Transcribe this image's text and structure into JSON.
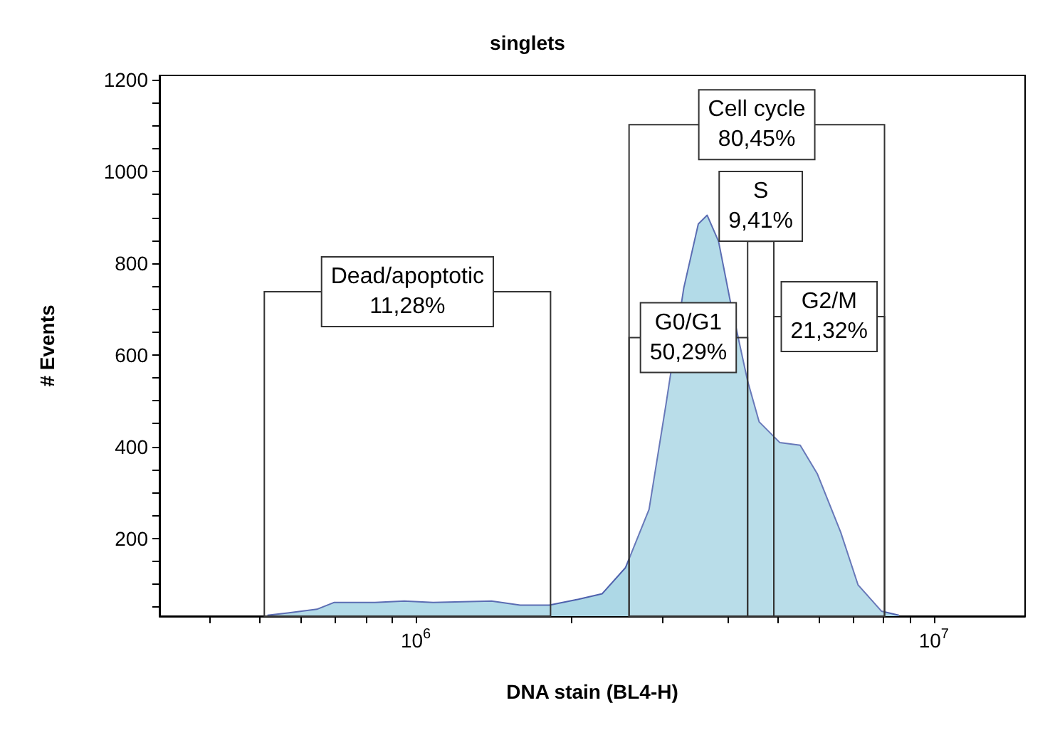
{
  "chart_data": {
    "type": "area",
    "title": "singlets",
    "xlabel": "DNA stain (BL4-H)",
    "ylabel": "# Events",
    "log": "x",
    "xlim": [
      320000,
      15000000
    ],
    "ylim": [
      30,
      1210
    ],
    "xticks": [
      {
        "value": 400000,
        "label": null
      },
      {
        "value": 500000,
        "label": null
      },
      {
        "value": 600000,
        "label": null
      },
      {
        "value": 700000,
        "label": null
      },
      {
        "value": 800000,
        "label": null
      },
      {
        "value": 900000,
        "label": null
      },
      {
        "value": 1000000,
        "label": "10$^{6}$"
      },
      {
        "value": 2000000,
        "label": null
      },
      {
        "value": 3000000,
        "label": null
      },
      {
        "value": 4000000,
        "label": null
      },
      {
        "value": 5000000,
        "label": null
      },
      {
        "value": 6000000,
        "label": null
      },
      {
        "value": 7000000,
        "label": null
      },
      {
        "value": 8000000,
        "label": null
      },
      {
        "value": 9000000,
        "label": null
      },
      {
        "value": 10000000,
        "label": "10$^{7}$"
      }
    ],
    "yticks": [
      {
        "value": 50,
        "label": null
      },
      {
        "value": 100,
        "label": null
      },
      {
        "value": 150,
        "label": null
      },
      200,
      {
        "value": 250,
        "label": null
      },
      {
        "value": 300,
        "label": null
      },
      {
        "value": 350,
        "label": null
      },
      400,
      {
        "value": 450,
        "label": null
      },
      {
        "value": 500,
        "label": null
      },
      {
        "value": 550,
        "label": null
      },
      600,
      {
        "value": 650,
        "label": null
      },
      {
        "value": 700,
        "label": null
      },
      {
        "value": 750,
        "label": null
      },
      800,
      {
        "value": 850,
        "label": null
      },
      {
        "value": 900,
        "label": null
      },
      {
        "value": 950,
        "label": null
      },
      1000,
      {
        "value": 1050,
        "label": null
      },
      {
        "value": 1100,
        "label": null
      },
      {
        "value": 1150,
        "label": null
      },
      1200
    ],
    "marker": "none",
    "x": [
      517000,
      566000,
      644000,
      696000,
      834000,
      950000,
      1080000,
      1400000,
      1590000,
      1810000,
      2060000,
      2290000,
      2540000,
      2820000,
      3040000,
      3290000,
      3510000,
      3650000,
      3840000,
      4040000,
      4370000,
      4600000,
      5040000,
      5520000,
      5960000,
      6610000,
      7140000,
      7920000,
      8560000
    ],
    "series": [
      {
        "color": "#add8e6",
        "values": [
          32,
          37,
          45,
          60,
          60,
          63,
          60,
          63,
          54,
          54,
          67,
          79,
          136,
          263,
          492,
          746,
          886,
          905,
          848,
          721,
          543,
          454,
          409,
          403,
          340,
          213,
          98,
          41,
          32
        ]
      }
    ],
    "bands": [
      {
        "axis": "x",
        "from": 510000,
        "to": 1820000,
        "label": "Dead/apoptotic\n11,28%"
      },
      {
        "axis": "x",
        "from": 2580000,
        "to": 8030000,
        "label": "Cell cycle\n80,45%"
      },
      {
        "axis": "x",
        "from": 2580000,
        "to": 4370000,
        "label": "G0/G1\n50,29%"
      },
      {
        "axis": "x",
        "from": 4370000,
        "to": 4910000,
        "label": "S\n9,41%"
      },
      {
        "axis": "x",
        "from": 4910000,
        "to": 8030000,
        "label": "G2/M\n21,32%"
      }
    ]
  }
}
